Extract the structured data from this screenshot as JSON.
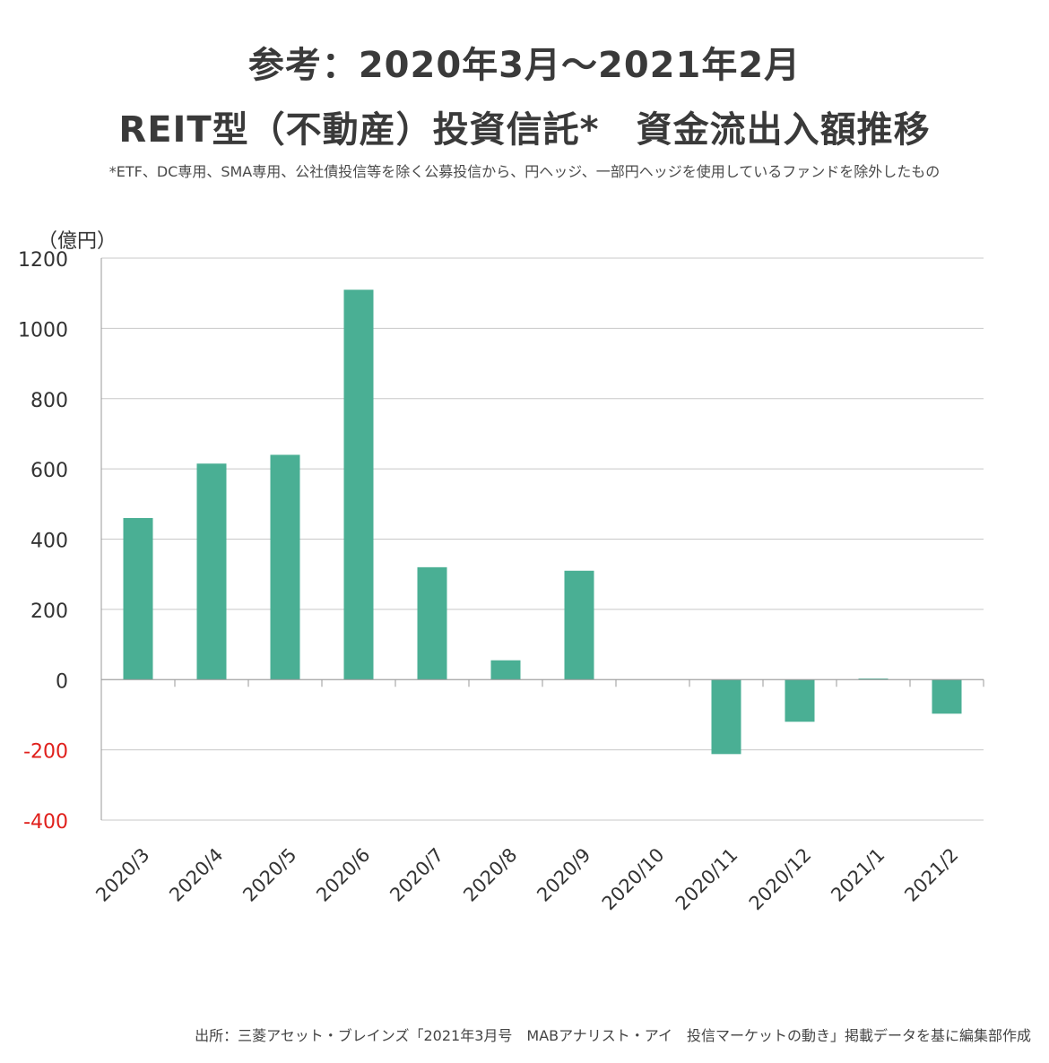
{
  "title_line1": "参考：2020年3月～2021年2月",
  "title_line2": "REIT型（不動産）投資信託*　資金流出入額推移",
  "note": "*ETF、DC専用、SMA専用、公社債投信等を除く公募投信から、円ヘッジ、一部円ヘッジを使用しているファンドを除外したもの",
  "source": "出所：三菱アセット・ブレインズ「2021年3月号　MABアナリスト・アイ　投信マーケットの動き」掲載データを基に編集部作成",
  "colors": {
    "bar": "#4aaf94",
    "negative_tick": "#e0201c",
    "grid": "#c8c8c8",
    "axis_text": "#333333"
  },
  "chart_data": {
    "type": "bar",
    "title": "",
    "xlabel": "",
    "ylabel": "（億円）",
    "categories": [
      "2020/3",
      "2020/4",
      "2020/5",
      "2020/6",
      "2020/7",
      "2020/8",
      "2020/9",
      "2020/10",
      "2020/11",
      "2020/12",
      "2021/1",
      "2021/2"
    ],
    "values": [
      460,
      615,
      640,
      1110,
      320,
      55,
      310,
      0,
      -212,
      -120,
      3,
      -97
    ],
    "ylim": [
      -400,
      1200
    ],
    "yticks": [
      1200,
      1000,
      800,
      600,
      400,
      200,
      0,
      -200,
      -400
    ],
    "grid": true,
    "legend": "none"
  }
}
